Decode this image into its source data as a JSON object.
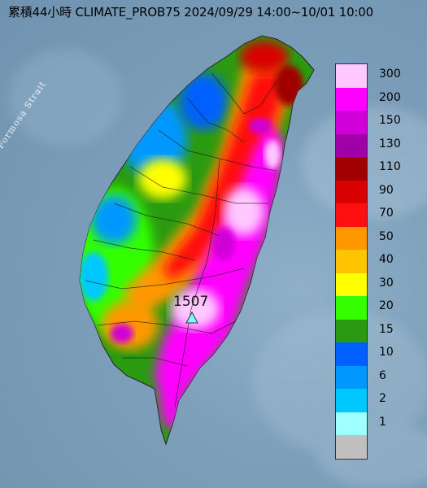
{
  "title": "累積44小時 CLIMATE_PROB75 2024/09/29 14:00~10/01 10:00",
  "strait_label": "Formosa Strait",
  "peak": {
    "value": "1507",
    "marker": "triangle-icon",
    "marker_color": "#7fffff"
  },
  "legend": {
    "items": [
      {
        "label": "300",
        "color": "#ffc8ff"
      },
      {
        "label": "200",
        "color": "#ff00ff"
      },
      {
        "label": "150",
        "color": "#d000d8"
      },
      {
        "label": "130",
        "color": "#a000a8"
      },
      {
        "label": "110",
        "color": "#a00000"
      },
      {
        "label": "90",
        "color": "#d80000"
      },
      {
        "label": "70",
        "color": "#ff1010"
      },
      {
        "label": "50",
        "color": "#ff9800"
      },
      {
        "label": "40",
        "color": "#ffc400"
      },
      {
        "label": "30",
        "color": "#ffff00"
      },
      {
        "label": "20",
        "color": "#33ff00"
      },
      {
        "label": "15",
        "color": "#2a9a10"
      },
      {
        "label": "10",
        "color": "#0060ff"
      },
      {
        "label": "6",
        "color": "#0098ff"
      },
      {
        "label": "2",
        "color": "#00c8ff"
      },
      {
        "label": "1",
        "color": "#a0ffff"
      },
      {
        "label": "",
        "color": "#c0c0c0"
      }
    ]
  }
}
